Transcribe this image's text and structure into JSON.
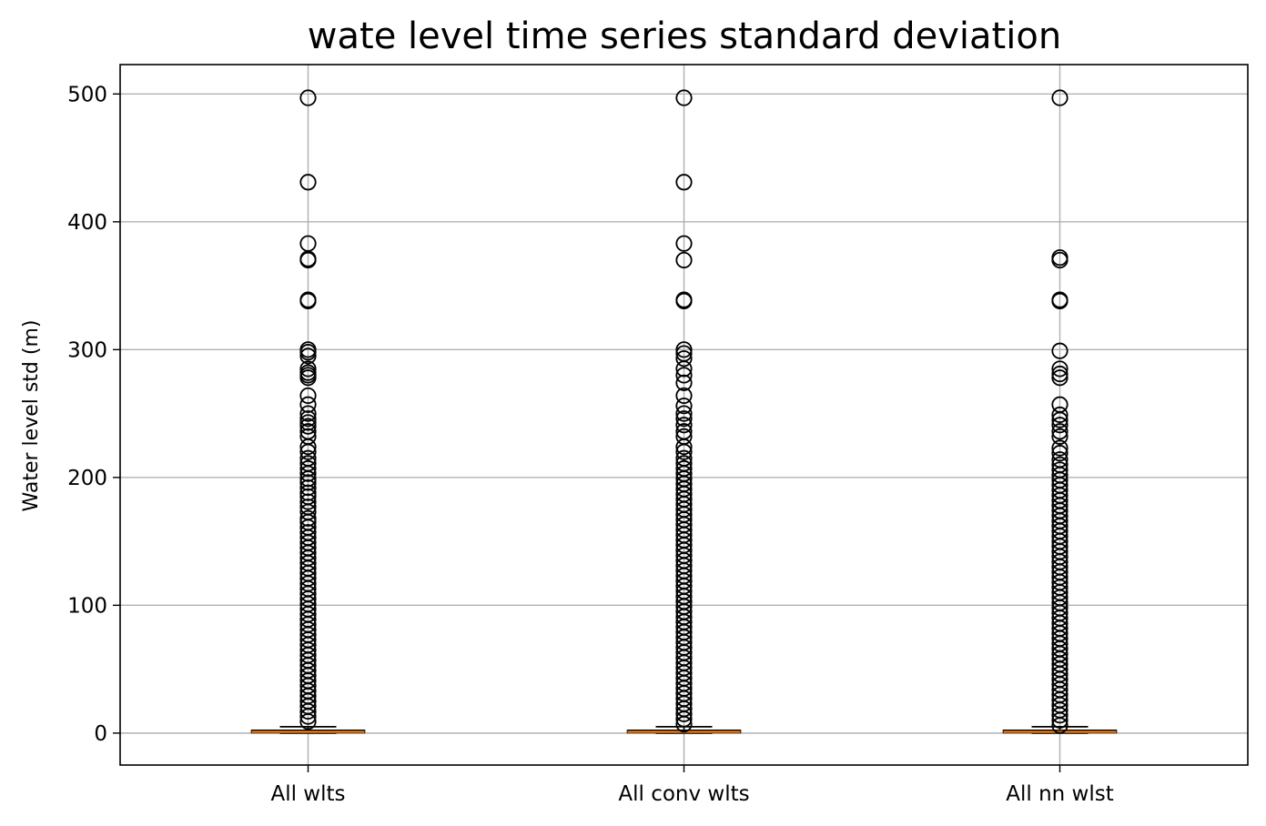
{
  "chart_data": {
    "type": "box",
    "title": "wate level time series standard deviation",
    "xlabel": "",
    "ylabel": "Water level std (m)",
    "ylim": [
      -25,
      523
    ],
    "yticks": [
      0,
      100,
      200,
      300,
      400,
      500
    ],
    "grid": true,
    "categories": [
      "All wlts",
      "All conv wlts",
      "All nn wlst"
    ],
    "boxes": [
      {
        "category": "All wlts",
        "q1": 0.3,
        "median": 1.0,
        "q3": 2.2,
        "whisker_low": 0.0,
        "whisker_high": 5.0,
        "outliers": [
          497,
          431,
          383,
          371,
          370,
          339,
          338,
          300,
          298,
          295,
          285,
          282,
          280,
          278,
          264,
          257,
          250,
          246,
          243,
          240,
          236,
          232,
          224,
          220,
          215,
          211,
          207,
          203,
          199,
          196,
          192,
          188,
          185,
          181,
          177,
          173,
          168,
          165,
          161,
          157,
          153,
          149,
          145,
          141,
          137,
          133,
          129,
          125,
          121,
          117,
          113,
          109,
          105,
          101,
          97,
          93,
          89,
          85,
          81,
          77,
          73,
          69,
          65,
          61,
          57,
          53,
          49,
          45,
          41,
          37,
          33,
          29,
          25,
          21,
          17,
          13,
          9
        ]
      },
      {
        "category": "All conv wlts",
        "q1": 0.3,
        "median": 1.0,
        "q3": 2.2,
        "whisker_low": 0.0,
        "whisker_high": 5.0,
        "outliers": [
          497,
          431,
          383,
          370,
          339,
          338,
          300,
          297,
          293,
          285,
          280,
          274,
          264,
          256,
          250,
          246,
          241,
          236,
          232,
          224,
          220,
          215,
          211,
          207,
          203,
          199,
          195,
          191,
          187,
          183,
          179,
          175,
          171,
          167,
          163,
          159,
          155,
          151,
          147,
          143,
          139,
          135,
          131,
          127,
          123,
          119,
          115,
          111,
          107,
          103,
          99,
          95,
          91,
          87,
          83,
          79,
          75,
          71,
          67,
          63,
          59,
          55,
          51,
          47,
          43,
          39,
          35,
          31,
          27,
          23,
          19,
          15,
          11,
          7
        ]
      },
      {
        "category": "All nn wlst",
        "q1": 0.3,
        "median": 1.0,
        "q3": 2.2,
        "whisker_low": 0.0,
        "whisker_high": 5.0,
        "outliers": [
          497,
          372,
          370,
          339,
          338,
          299,
          285,
          281,
          278,
          257,
          249,
          245,
          241,
          236,
          232,
          223,
          219,
          214,
          210,
          206,
          202,
          198,
          194,
          190,
          186,
          182,
          178,
          174,
          170,
          166,
          162,
          158,
          154,
          150,
          146,
          142,
          138,
          134,
          130,
          126,
          122,
          118,
          114,
          110,
          106,
          102,
          98,
          94,
          90,
          86,
          82,
          78,
          74,
          70,
          66,
          62,
          58,
          54,
          50,
          46,
          42,
          38,
          34,
          30,
          26,
          22,
          18,
          14,
          10,
          6
        ]
      }
    ],
    "colors": {
      "box_edge": "#000000",
      "median": "#ff7f0e",
      "grid": "#b0b0b0",
      "flier_edge": "#000000",
      "frame": "#000000"
    }
  }
}
